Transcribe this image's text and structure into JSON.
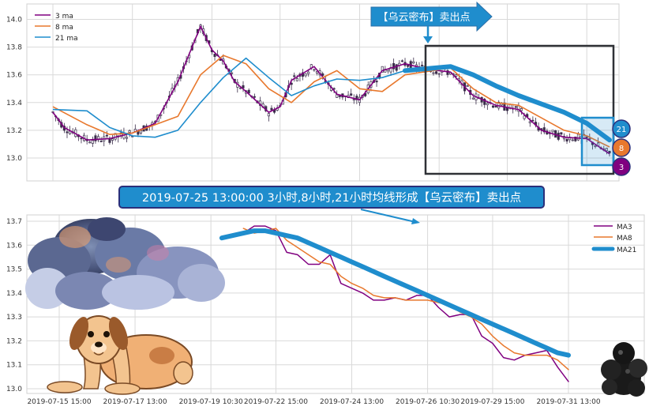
{
  "chart_data": [
    {
      "type": "line",
      "subtype": "candlestick-with-moving-averages",
      "title": "",
      "xlabel": "",
      "ylabel": "",
      "ylim": [
        12.85,
        14.05
      ],
      "yticks": [
        "13.0",
        "13.2",
        "13.4",
        "13.6",
        "13.8",
        "14.0"
      ],
      "grid": true,
      "legend_position": "top-left",
      "x_range": [
        "2019-07-15 15:00",
        "2019-08-01 09:00"
      ],
      "series": [
        {
          "name": "3 ma",
          "color": "#800080",
          "x": [
            "2019-07-15 15:00",
            "2019-07-16 09:00",
            "2019-07-16 13:00",
            "2019-07-17 09:00",
            "2019-07-17 13:00",
            "2019-07-18 09:00",
            "2019-07-18 13:00",
            "2019-07-19 09:00",
            "2019-07-19 10:30",
            "2019-07-19 13:00",
            "2019-07-19 15:00",
            "2019-07-22 09:00",
            "2019-07-22 13:00",
            "2019-07-22 15:00",
            "2019-07-23 09:00",
            "2019-07-23 13:00",
            "2019-07-24 09:00",
            "2019-07-24 13:00",
            "2019-07-25 09:00",
            "2019-07-25 13:00",
            "2019-07-26 09:00",
            "2019-07-26 13:00",
            "2019-07-29 09:00",
            "2019-07-29 13:00",
            "2019-07-30 09:00",
            "2019-07-30 13:00",
            "2019-07-31 09:00",
            "2019-07-31 13:00",
            "2019-08-01 09:00"
          ],
          "values": [
            13.33,
            13.22,
            13.13,
            13.14,
            13.18,
            13.25,
            13.55,
            13.95,
            13.78,
            13.7,
            13.55,
            13.48,
            13.33,
            13.37,
            13.56,
            13.66,
            13.46,
            13.42,
            13.63,
            13.68,
            13.64,
            13.62,
            13.45,
            13.38,
            13.35,
            13.2,
            13.15,
            13.14,
            13.03
          ]
        },
        {
          "name": "8 ma",
          "color": "#e8782d",
          "x": [
            "2019-07-15 15:00",
            "2019-07-16 13:00",
            "2019-07-17 09:00",
            "2019-07-17 13:00",
            "2019-07-18 13:00",
            "2019-07-19 09:00",
            "2019-07-19 13:00",
            "2019-07-22 09:00",
            "2019-07-22 13:00",
            "2019-07-23 09:00",
            "2019-07-23 13:00",
            "2019-07-24 09:00",
            "2019-07-24 13:00",
            "2019-07-25 09:00",
            "2019-07-25 13:00",
            "2019-07-26 13:00",
            "2019-07-29 09:00",
            "2019-07-29 13:00",
            "2019-07-30 09:00",
            "2019-07-31 09:00",
            "2019-07-31 13:00",
            "2019-08-01 09:00"
          ],
          "values": [
            13.37,
            13.24,
            13.17,
            13.18,
            13.3,
            13.6,
            13.74,
            13.68,
            13.5,
            13.4,
            13.55,
            13.63,
            13.5,
            13.48,
            13.6,
            13.65,
            13.5,
            13.4,
            13.38,
            13.2,
            13.16,
            13.08
          ]
        },
        {
          "name": "21 ma",
          "color": "#1f8dcd",
          "x": [
            "2019-07-15 15:00",
            "2019-07-16 13:00",
            "2019-07-17 09:00",
            "2019-07-17 13:00",
            "2019-07-18 09:00",
            "2019-07-18 13:00",
            "2019-07-19 09:00",
            "2019-07-19 13:00",
            "2019-07-22 09:00",
            "2019-07-22 13:00",
            "2019-07-23 09:00",
            "2019-07-23 13:00",
            "2019-07-24 09:00",
            "2019-07-24 13:00",
            "2019-07-25 09:00",
            "2019-07-25 13:00",
            "2019-07-26 13:00",
            "2019-07-29 09:00",
            "2019-07-29 13:00",
            "2019-07-30 09:00",
            "2019-07-31 09:00",
            "2019-07-31 13:00",
            "2019-08-01 09:00"
          ],
          "values": [
            13.35,
            13.34,
            13.22,
            13.16,
            13.15,
            13.2,
            13.4,
            13.58,
            13.72,
            13.58,
            13.45,
            13.52,
            13.57,
            13.56,
            13.58,
            13.63,
            13.66,
            13.6,
            13.52,
            13.45,
            13.33,
            13.25,
            13.13
          ]
        }
      ],
      "annotations": [
        {
          "text": "【乌云密布】卖出点"
        }
      ],
      "markers": [
        "21",
        "8",
        "3"
      ]
    },
    {
      "type": "line",
      "title": "",
      "xlabel": "",
      "ylabel": "",
      "ylim": [
        12.98,
        13.72
      ],
      "yticks": [
        "13.0",
        "13.1",
        "13.2",
        "13.3",
        "13.4",
        "13.5",
        "13.6",
        "13.7"
      ],
      "xticks": [
        "2019-07-15 15:00",
        "2019-07-17 13:00",
        "2019-07-19 10:30",
        "2019-07-22 15:00",
        "2019-07-24 13:00",
        "2019-07-26 10:30",
        "2019-07-29 15:00",
        "2019-07-31 13:00"
      ],
      "grid": true,
      "legend_position": "top-right",
      "series": [
        {
          "name": "MA3",
          "color": "#800080",
          "x": [
            "2019-07-22 09:00",
            "2019-07-22 10:30",
            "2019-07-22 13:00",
            "2019-07-22 15:00",
            "2019-07-23 09:00",
            "2019-07-23 10:30",
            "2019-07-23 13:00",
            "2019-07-23 15:00",
            "2019-07-24 09:00",
            "2019-07-24 10:30",
            "2019-07-24 13:00",
            "2019-07-24 15:00",
            "2019-07-25 09:00",
            "2019-07-25 10:30",
            "2019-07-25 13:00",
            "2019-07-25 15:00",
            "2019-07-26 09:00",
            "2019-07-26 10:30",
            "2019-07-26 13:00",
            "2019-07-26 15:00",
            "2019-07-29 09:00",
            "2019-07-29 10:30",
            "2019-07-29 13:00",
            "2019-07-29 15:00",
            "2019-07-30 09:00",
            "2019-07-30 10:30",
            "2019-07-30 13:00",
            "2019-07-30 15:00",
            "2019-07-31 09:00",
            "2019-07-31 10:30",
            "2019-07-31 13:00"
          ],
          "values": [
            13.65,
            13.68,
            13.68,
            13.66,
            13.57,
            13.56,
            13.52,
            13.52,
            13.56,
            13.44,
            13.42,
            13.4,
            13.37,
            13.37,
            13.38,
            13.37,
            13.39,
            13.39,
            13.34,
            13.3,
            13.31,
            13.31,
            13.22,
            13.19,
            13.13,
            13.12,
            13.14,
            13.15,
            13.16,
            13.09,
            13.03
          ]
        },
        {
          "name": "MA8",
          "color": "#e8782d",
          "x": [
            "2019-07-22 09:00",
            "2019-07-22 10:30",
            "2019-07-22 13:00",
            "2019-07-22 15:00",
            "2019-07-23 09:00",
            "2019-07-23 10:30",
            "2019-07-23 13:00",
            "2019-07-23 15:00",
            "2019-07-24 09:00",
            "2019-07-24 10:30",
            "2019-07-24 13:00",
            "2019-07-24 15:00",
            "2019-07-25 09:00",
            "2019-07-25 10:30",
            "2019-07-25 13:00",
            "2019-07-25 15:00",
            "2019-07-26 09:00",
            "2019-07-26 10:30",
            "2019-07-26 13:00",
            "2019-07-26 15:00",
            "2019-07-29 09:00",
            "2019-07-29 10:30",
            "2019-07-29 13:00",
            "2019-07-29 15:00",
            "2019-07-30 09:00",
            "2019-07-30 10:30",
            "2019-07-30 13:00",
            "2019-07-30 15:00",
            "2019-07-31 09:00",
            "2019-07-31 10:30",
            "2019-07-31 13:00"
          ],
          "values": [
            13.67,
            13.65,
            13.66,
            13.67,
            13.62,
            13.59,
            13.56,
            13.53,
            13.52,
            13.47,
            13.44,
            13.42,
            13.39,
            13.38,
            13.38,
            13.37,
            13.37,
            13.37,
            13.36,
            13.35,
            13.32,
            13.3,
            13.27,
            13.22,
            13.18,
            13.15,
            13.14,
            13.14,
            13.14,
            13.12,
            13.08
          ]
        },
        {
          "name": "MA21",
          "color": "#1f8dcd",
          "x": [
            "2019-07-19 13:00",
            "2019-07-22 09:00",
            "2019-07-22 10:30",
            "2019-07-22 13:00",
            "2019-07-22 15:00",
            "2019-07-23 09:00",
            "2019-07-23 10:30",
            "2019-07-23 13:00",
            "2019-07-23 15:00",
            "2019-07-24 09:00",
            "2019-07-24 10:30",
            "2019-07-24 13:00",
            "2019-07-24 15:00",
            "2019-07-25 09:00",
            "2019-07-25 10:30",
            "2019-07-25 13:00",
            "2019-07-25 15:00",
            "2019-07-26 09:00",
            "2019-07-26 10:30",
            "2019-07-26 13:00",
            "2019-07-26 15:00",
            "2019-07-29 09:00",
            "2019-07-29 10:30",
            "2019-07-29 13:00",
            "2019-07-29 15:00",
            "2019-07-30 09:00",
            "2019-07-30 10:30",
            "2019-07-30 13:00",
            "2019-07-30 15:00",
            "2019-07-31 09:00",
            "2019-07-31 10:30",
            "2019-07-31 13:00"
          ],
          "values": [
            13.63,
            13.65,
            13.66,
            13.66,
            13.65,
            13.64,
            13.63,
            13.61,
            13.59,
            13.57,
            13.55,
            13.53,
            13.51,
            13.49,
            13.47,
            13.45,
            13.43,
            13.41,
            13.39,
            13.37,
            13.35,
            13.33,
            13.31,
            13.29,
            13.27,
            13.25,
            13.23,
            13.21,
            13.19,
            13.17,
            13.15,
            13.14
          ]
        }
      ],
      "annotations": [
        {
          "text": "2019-07-25 13:00:00 3小时,8小时,21小时均线形成【乌云密布】卖出点"
        }
      ]
    }
  ],
  "colors": {
    "ma3": "#800080",
    "ma8": "#e8782d",
    "ma21": "#1f8dcd",
    "candle": "#3a2d4a",
    "grid": "#d9d9d9",
    "callout_fill": "#1f8dcd",
    "callout_border": "#2b2f7a",
    "frame": "#2f3136"
  },
  "icons": [
    "storm-cloud-icon",
    "dog-icon",
    "dark-cloud-icon"
  ]
}
